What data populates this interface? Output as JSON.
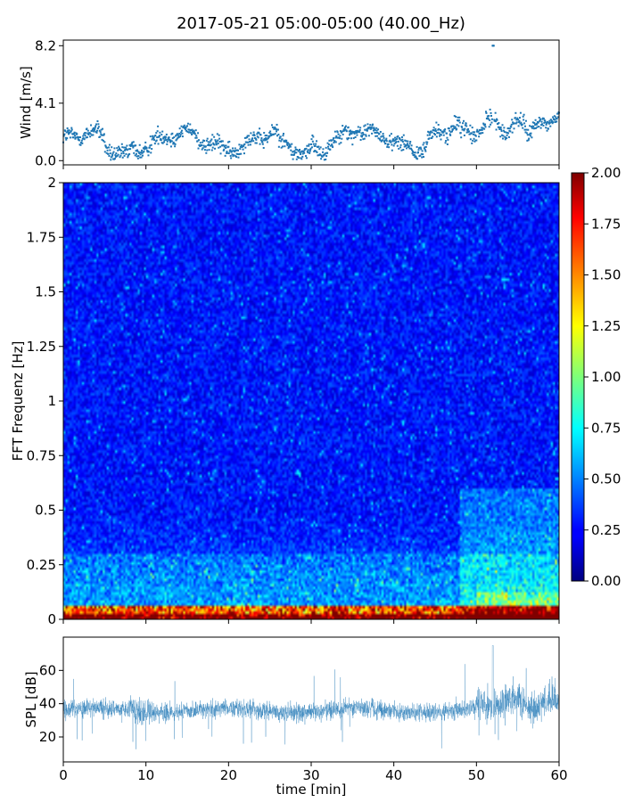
{
  "title": "2017-05-21 05:00-05:00 (40.00_Hz)",
  "chart_data": [
    {
      "type": "scatter",
      "name": "wind",
      "ylabel": "Wind [m/s]",
      "xlim": [
        0,
        60
      ],
      "ylim": [
        -0.3,
        8.6
      ],
      "yticks": [
        0.0,
        4.1,
        8.2
      ],
      "ytick_labels": [
        "0.0",
        "4.1",
        "8.2"
      ],
      "color": "#1f77b4",
      "sample_interval_min": 0.05,
      "values_summary": "wind speed samples mostly 0.5–3.5 m/s, rising after ~50 min with peaks up to 8.2 m/s near 52 min"
    },
    {
      "type": "heatmap",
      "name": "spectrogram",
      "ylabel": "FFT Frequenz [Hz]",
      "xlim": [
        0,
        60
      ],
      "ylim": [
        0,
        2
      ],
      "yticks": [
        0,
        0.25,
        0.5,
        0.75,
        1,
        1.25,
        1.5,
        1.75,
        2
      ],
      "ytick_labels": [
        "0",
        "0.25",
        "0.5",
        "0.75",
        "1",
        "1.25",
        "1.5",
        "1.75",
        "2"
      ],
      "colormap": "jet",
      "color_range": [
        0,
        2
      ],
      "colorbar_ticks": [
        "0.00",
        "0.25",
        "0.50",
        "0.75",
        "1.00",
        "1.25",
        "1.50",
        "1.75",
        "2.00"
      ],
      "values_summary": "mostly 0.1–0.5 across all frequencies; high values (1.5–2.0) concentrated below 0.05 Hz, elevated around 0.1–0.3 Hz after 50 min"
    },
    {
      "type": "line",
      "name": "spl",
      "ylabel": "SPL [dB]",
      "xlabel": "time [min]",
      "xlim": [
        0,
        60
      ],
      "ylim": [
        5,
        80
      ],
      "yticks": [
        20,
        40,
        60
      ],
      "ytick_labels": [
        "20",
        "40",
        "60"
      ],
      "xticks": [
        0,
        10,
        20,
        30,
        40,
        50,
        60
      ],
      "xtick_labels": [
        "0",
        "10",
        "20",
        "30",
        "40",
        "50",
        "60"
      ],
      "color": "#1f77b4",
      "values_summary": "dense trace around 30–42 dB, widening to 25–70 dB after 50 min"
    }
  ]
}
